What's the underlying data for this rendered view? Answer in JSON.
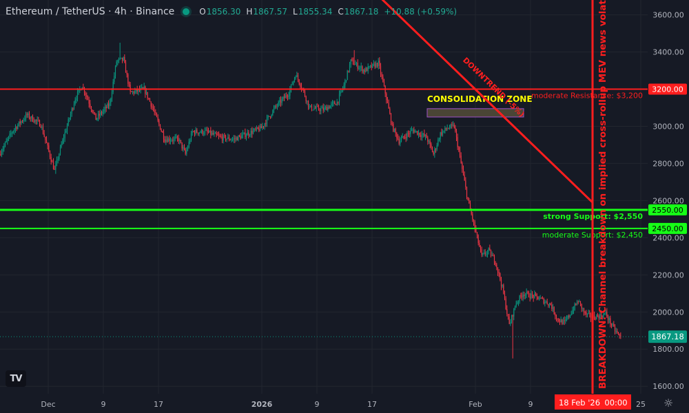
{
  "header": {
    "symbol": "Ethereum / TetherUS · 4h · Binance",
    "open_label": "O",
    "open": "1856.30",
    "high_label": "H",
    "high": "1867.57",
    "low_label": "L",
    "low": "1855.34",
    "close_label": "C",
    "close": "1867.18",
    "change": "+10.88 (+0.59%)"
  },
  "logo_text": "TV",
  "colors": {
    "background": "#161a25",
    "grid": "#22262f",
    "axis_text": "#b2b5be",
    "up": "#089981",
    "down": "#f23645",
    "resistance": "#ff1e1e",
    "support": "#17ff17",
    "consolidation_label": "#ffff00"
  },
  "chart_data": {
    "type": "candlestick",
    "symbol": "ETH/USDT",
    "timeframe": "4h",
    "ylim": [
      1560,
      3680
    ],
    "yticks": [
      1600,
      1800,
      2000,
      2200,
      2400,
      2600,
      2800,
      3000,
      3200,
      3400,
      3600
    ],
    "ytick_labels": [
      "1600.00",
      "1800.00",
      "2000.00",
      "2200.00",
      "2400.00",
      "2600.00",
      "2800.00",
      "3000.00",
      "3200.00",
      "3400.00",
      "3600.00"
    ],
    "xlim": [
      "2025-11-24T00:00",
      "2026-02-26T00:00"
    ],
    "xticks": [
      {
        "label": "Dec",
        "date": "2025-12-01"
      },
      {
        "label": "9",
        "date": "2025-12-09"
      },
      {
        "label": "17",
        "date": "2025-12-17"
      },
      {
        "label": "2026",
        "date": "2026-01-01"
      },
      {
        "label": "9",
        "date": "2026-01-09"
      },
      {
        "label": "17",
        "date": "2026-01-17"
      },
      {
        "label": "Feb",
        "date": "2026-02-01"
      },
      {
        "label": "9",
        "date": "2026-02-09"
      },
      {
        "label": "25",
        "date": "2026-02-25"
      }
    ],
    "price_path": [
      [
        "2025-11-24",
        2850
      ],
      [
        "2025-11-26",
        2980
      ],
      [
        "2025-11-28",
        3060
      ],
      [
        "2025-11-30",
        3010
      ],
      [
        "2025-12-02",
        2760
      ],
      [
        "2025-12-03",
        2900
      ],
      [
        "2025-12-05",
        3150
      ],
      [
        "2025-12-06",
        3220
      ],
      [
        "2025-12-08",
        3040
      ],
      [
        "2025-12-10",
        3120
      ],
      [
        "2025-12-11",
        3350
      ],
      [
        "2025-12-12",
        3360
      ],
      [
        "2025-12-13",
        3180
      ],
      [
        "2025-12-15",
        3200
      ],
      [
        "2025-12-16",
        3120
      ],
      [
        "2025-12-18",
        2930
      ],
      [
        "2025-12-20",
        2930
      ],
      [
        "2025-12-21",
        2850
      ],
      [
        "2025-12-22",
        2970
      ],
      [
        "2025-12-24",
        2970
      ],
      [
        "2025-12-26",
        2940
      ],
      [
        "2025-12-28",
        2930
      ],
      [
        "2025-12-30",
        2960
      ],
      [
        "2026-01-01",
        2990
      ],
      [
        "2026-01-03",
        3100
      ],
      [
        "2026-01-05",
        3180
      ],
      [
        "2026-01-06",
        3280
      ],
      [
        "2026-01-07",
        3200
      ],
      [
        "2026-01-08",
        3100
      ],
      [
        "2026-01-10",
        3090
      ],
      [
        "2026-01-12",
        3130
      ],
      [
        "2026-01-13",
        3220
      ],
      [
        "2026-01-14",
        3350
      ],
      [
        "2026-01-16",
        3300
      ],
      [
        "2026-01-18",
        3340
      ],
      [
        "2026-01-19",
        3180
      ],
      [
        "2026-01-20",
        3000
      ],
      [
        "2026-01-21",
        2920
      ],
      [
        "2026-01-23",
        2980
      ],
      [
        "2026-01-25",
        2940
      ],
      [
        "2026-01-26",
        2850
      ],
      [
        "2026-01-27",
        2960
      ],
      [
        "2026-01-28",
        2990
      ],
      [
        "2026-01-29",
        3000
      ],
      [
        "2026-01-30",
        2800
      ],
      [
        "2026-01-31",
        2600
      ],
      [
        "2026-02-01",
        2450
      ],
      [
        "2026-02-02",
        2300
      ],
      [
        "2026-02-03",
        2330
      ],
      [
        "2026-02-04",
        2270
      ],
      [
        "2026-02-05",
        2130
      ],
      [
        "2026-02-06",
        1930
      ],
      [
        "2026-02-07",
        2050
      ],
      [
        "2026-02-08",
        2100
      ],
      [
        "2026-02-10",
        2080
      ],
      [
        "2026-02-12",
        2040
      ],
      [
        "2026-02-13",
        1960
      ],
      [
        "2026-02-14",
        1940
      ],
      [
        "2026-02-15",
        2000
      ],
      [
        "2026-02-16",
        2060
      ],
      [
        "2026-02-17",
        1990
      ],
      [
        "2026-02-18",
        1970
      ],
      [
        "2026-02-19",
        1980
      ],
      [
        "2026-02-20",
        1990
      ],
      [
        "2026-02-21",
        1920
      ],
      [
        "2026-02-22",
        1868
      ]
    ],
    "extremes": [
      {
        "date": "2025-12-11",
        "high": 3450
      },
      {
        "date": "2026-01-14",
        "high": 3410
      },
      {
        "date": "2026-02-06",
        "low": 1750
      }
    ],
    "last_price": {
      "value": 1867.18,
      "label": "1867.18"
    },
    "horizontal_levels": [
      {
        "price": 3200,
        "kind": "resistance",
        "axis_label": "3200.00",
        "text": "moderate Resistance: $3,200"
      },
      {
        "price": 2550,
        "kind": "support",
        "axis_label": "2550.00",
        "text": "strong Support: $2,550"
      },
      {
        "price": 2450,
        "kind": "support",
        "axis_label": "2450.00",
        "text": "moderate Support: $2,450"
      }
    ],
    "trendline": {
      "label": "DOWNTREND (-5%)",
      "start": {
        "date": "2026-01-18",
        "price": 3700
      },
      "end": {
        "date": "2026-02-18",
        "price": 2590
      }
    },
    "consolidation_zone": {
      "label": "CONSOLIDATION ZONE",
      "start_date": "2026-01-25",
      "end_date": "2026-02-08",
      "low": 3050,
      "high": 3095
    },
    "vertical_marker": {
      "date": "2026-02-18",
      "label": "BREAKDOWN: Channel breakdown on implied cross-rollup MEV news volatility",
      "date_label": "18 Feb '26",
      "time_label": "00:00"
    }
  }
}
